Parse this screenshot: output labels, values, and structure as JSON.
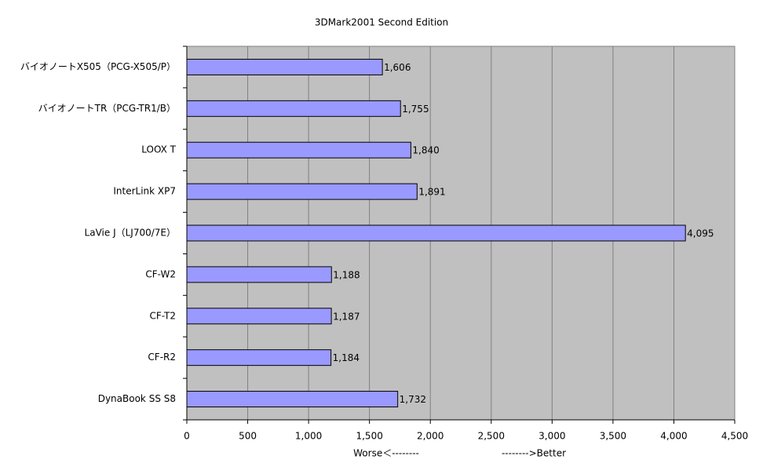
{
  "chart_data": {
    "type": "hbar",
    "title": "3DMark2001 Second Edition",
    "categories": [
      "バイオノートX505（PCG-X505/P）",
      "バイオノートTR（PCG-TR1/B）",
      "LOOX T",
      "InterLink XP7",
      "LaVie J（LJ700/7E）",
      "CF-W2",
      "CF-T2",
      "CF-R2",
      "DynaBook SS S8"
    ],
    "values": [
      1606,
      1755,
      1840,
      1891,
      4095,
      1188,
      1187,
      1184,
      1732
    ],
    "value_labels": [
      "1,606",
      "1,755",
      "1,840",
      "1,891",
      "4,095",
      "1,188",
      "1,187",
      "1,184",
      "1,732"
    ],
    "color": "#9999ff",
    "xlim": [
      0,
      4500
    ],
    "xticks": [
      0,
      500,
      {
        "value": 1000,
        "label": "1,000"
      },
      {
        "value": 1500,
        "label": "1,500"
      },
      {
        "value": 2000,
        "label": "2,000"
      },
      {
        "value": 2500,
        "label": "2,500"
      },
      {
        "value": 3000,
        "label": "3,000"
      },
      {
        "value": 3500,
        "label": "3,500"
      },
      {
        "value": 4000,
        "label": "4,000"
      },
      {
        "value": 4500,
        "label": "4,500"
      }
    ],
    "grid": true,
    "annotations": [
      "Worse＜--------",
      "-------->Better"
    ]
  }
}
